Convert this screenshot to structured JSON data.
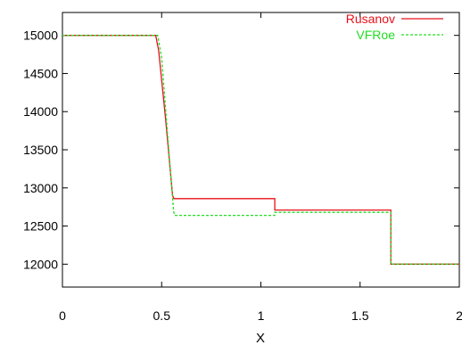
{
  "chart_data": {
    "type": "line",
    "title": "",
    "xlabel": "X",
    "ylabel": "",
    "xlim": [
      0,
      2
    ],
    "ylim": [
      11700,
      15300
    ],
    "grid": false,
    "legend_position": "top-right",
    "x_ticks": [
      0,
      0.5,
      1,
      1.5,
      2
    ],
    "x_tick_labels": [
      "0",
      "0.5",
      "1",
      "1.5",
      "2"
    ],
    "y_ticks": [
      12000,
      12500,
      13000,
      13500,
      14000,
      14500,
      15000
    ],
    "y_tick_labels": [
      "12000",
      "12500",
      "13000",
      "13500",
      "14000",
      "14500",
      "15000"
    ],
    "series": [
      {
        "name": "Rusanov",
        "color": "#e8101a",
        "dash": "solid",
        "x": [
          0,
          0.47,
          0.485,
          0.52,
          0.555,
          0.562,
          1.07,
          1.07,
          1.655,
          1.655,
          2
        ],
        "y": [
          15000,
          15000,
          14800,
          13900,
          12900,
          12860,
          12860,
          12710,
          12710,
          12000,
          12000
        ]
      },
      {
        "name": "VFRoe",
        "color": "#22dd22",
        "dash": "dashed",
        "x": [
          0,
          0.48,
          0.5,
          0.53,
          0.56,
          0.565,
          1.07,
          1.07,
          1.655,
          1.655,
          2
        ],
        "y": [
          15000,
          15000,
          14700,
          13700,
          12700,
          12640,
          12640,
          12680,
          12680,
          12000,
          12000
        ]
      }
    ]
  }
}
